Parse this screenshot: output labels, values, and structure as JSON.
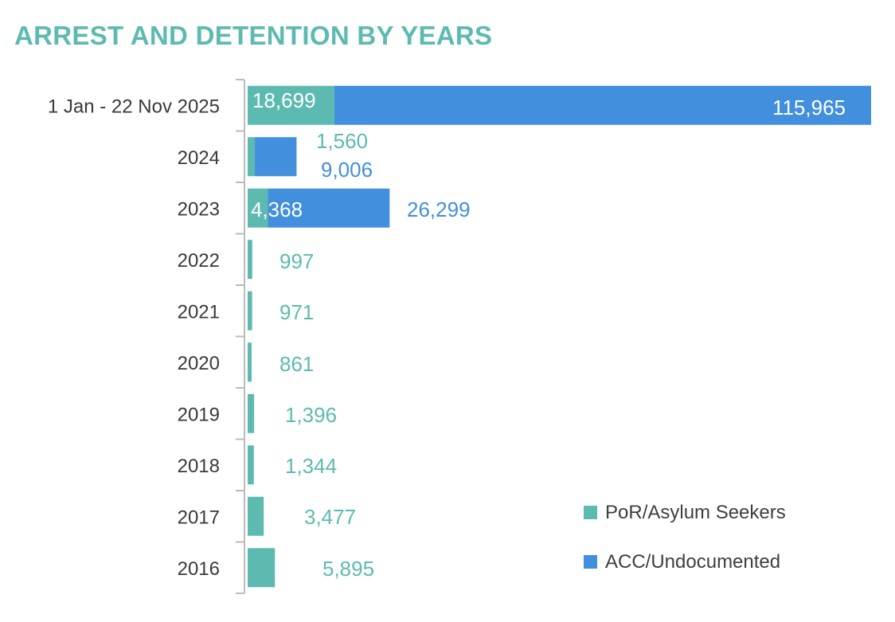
{
  "colors": {
    "title": "#5DBAB1",
    "por": "#5DBAB1",
    "acc": "#418FDD",
    "axis": "#BBBBBB",
    "label": "#3A3A3A"
  },
  "chart_data": {
    "type": "bar",
    "orientation": "horizontal",
    "stacked": true,
    "title": "ARREST AND DETENTION BY YEARS",
    "xlabel": "",
    "ylabel": "",
    "grid": false,
    "legend_position": "bottom-right",
    "categories": [
      "1 Jan - 22 Nov 2025",
      "2024",
      "2023",
      "2022",
      "2021",
      "2020",
      "2019",
      "2018",
      "2017",
      "2016"
    ],
    "series": [
      {
        "name": "PoR/Asylum Seekers",
        "values": [
          18699,
          1560,
          4368,
          997,
          971,
          861,
          1396,
          1344,
          3477,
          5895
        ],
        "labels": [
          "18,699",
          "1,560",
          "4,368",
          "997",
          "971",
          "861",
          "1,396",
          "1,344",
          "3,477",
          "5,895"
        ]
      },
      {
        "name": "ACC/Undocumented",
        "values": [
          115965,
          9006,
          26299,
          null,
          null,
          null,
          null,
          null,
          null,
          null
        ],
        "labels": [
          "115,965",
          "9,006",
          "26,299",
          null,
          null,
          null,
          null,
          null,
          null,
          null
        ]
      }
    ]
  }
}
